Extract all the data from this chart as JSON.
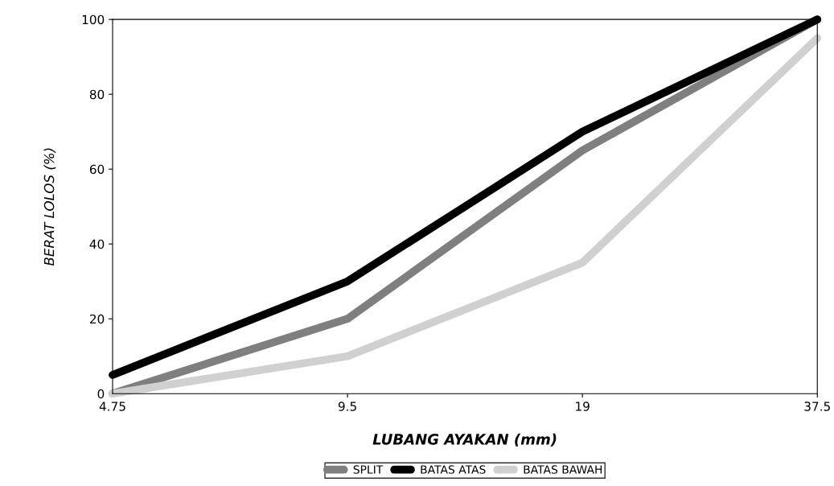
{
  "chart_data": {
    "type": "line",
    "xlabel": "LUBANG AYAKAN (mm)",
    "ylabel": "BERAT LOLOS (%)",
    "categories": [
      "4.75",
      "9.5",
      "19",
      "37.5"
    ],
    "series": [
      {
        "name": "SPLIT",
        "color": "#7f7f7f",
        "values": [
          0,
          20,
          65,
          100
        ]
      },
      {
        "name": "BATAS ATAS",
        "color": "#000000",
        "values": [
          5,
          30,
          70,
          100
        ]
      },
      {
        "name": "BATAS BAWAH",
        "color": "#d0d0d0",
        "values": [
          0,
          10,
          35,
          95
        ]
      }
    ],
    "ylim": [
      0,
      100
    ],
    "yticks": [
      0,
      20,
      40,
      60,
      80,
      100
    ],
    "grid": false,
    "legend": "bottom",
    "marker": "none",
    "line_style": "solid"
  }
}
